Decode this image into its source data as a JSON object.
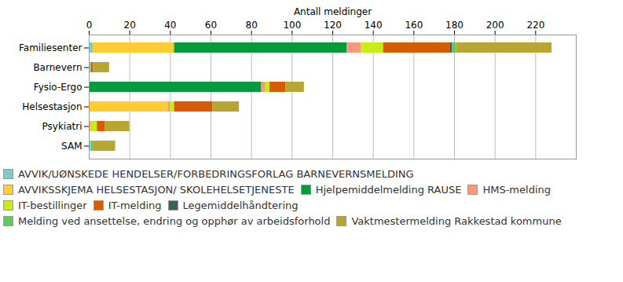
{
  "chart_data": {
    "type": "bar",
    "orientation": "horizontal",
    "stacked": true,
    "grid": true,
    "legend": "bottom",
    "xlabel": "Antall meldinger",
    "categories": [
      "Familiesenter",
      "Barnevern",
      "Fysio-Ergo",
      "Helsestasjon",
      "Psykiatri",
      "SAM"
    ],
    "xlim": [
      0,
      240
    ],
    "xticks": [
      0,
      20,
      40,
      60,
      80,
      100,
      120,
      140,
      160,
      180,
      200,
      220
    ],
    "series": [
      {
        "name": "AVVIK/UØNSKEDE HENDELSER/FORBEDRINGSFORLAG BARNEVERNSMELDING",
        "color": "#7fcccc",
        "values": [
          2,
          1,
          0,
          0,
          0,
          1
        ]
      },
      {
        "name": "AVVIKSSKJEMA HELSESTASJON/ SKOLEHELSETJENESTE",
        "color": "#ffcc33",
        "values": [
          40,
          0,
          0,
          39,
          0,
          0
        ]
      },
      {
        "name": "Hjelpemiddelmelding RAUSE",
        "color": "#079a3c",
        "values": [
          85,
          0,
          85,
          0,
          0,
          0
        ]
      },
      {
        "name": "HMS-melding",
        "color": "#f59a7c",
        "values": [
          7,
          0,
          2,
          1,
          1,
          0
        ]
      },
      {
        "name": "IT-bestillinger",
        "color": "#c8ec14",
        "values": [
          11,
          0,
          2,
          2,
          3,
          0
        ]
      },
      {
        "name": "IT-melding",
        "color": "#d65c04",
        "values": [
          33,
          1,
          8,
          19,
          4,
          0
        ]
      },
      {
        "name": "Legemiddelhåndtering",
        "color": "#3f5e5a",
        "values": [
          1,
          0,
          0,
          0,
          0,
          0
        ]
      },
      {
        "name": "Melding ved ansettelse, endring og opphør av arbeidsforhold",
        "color": "#5ccc5c",
        "values": [
          2,
          0,
          0,
          0,
          0,
          1
        ]
      },
      {
        "name": "Vaktmestermelding Rakkestad kommune",
        "color": "#b8a632",
        "values": [
          47,
          8,
          9,
          13,
          12,
          11
        ]
      }
    ]
  }
}
